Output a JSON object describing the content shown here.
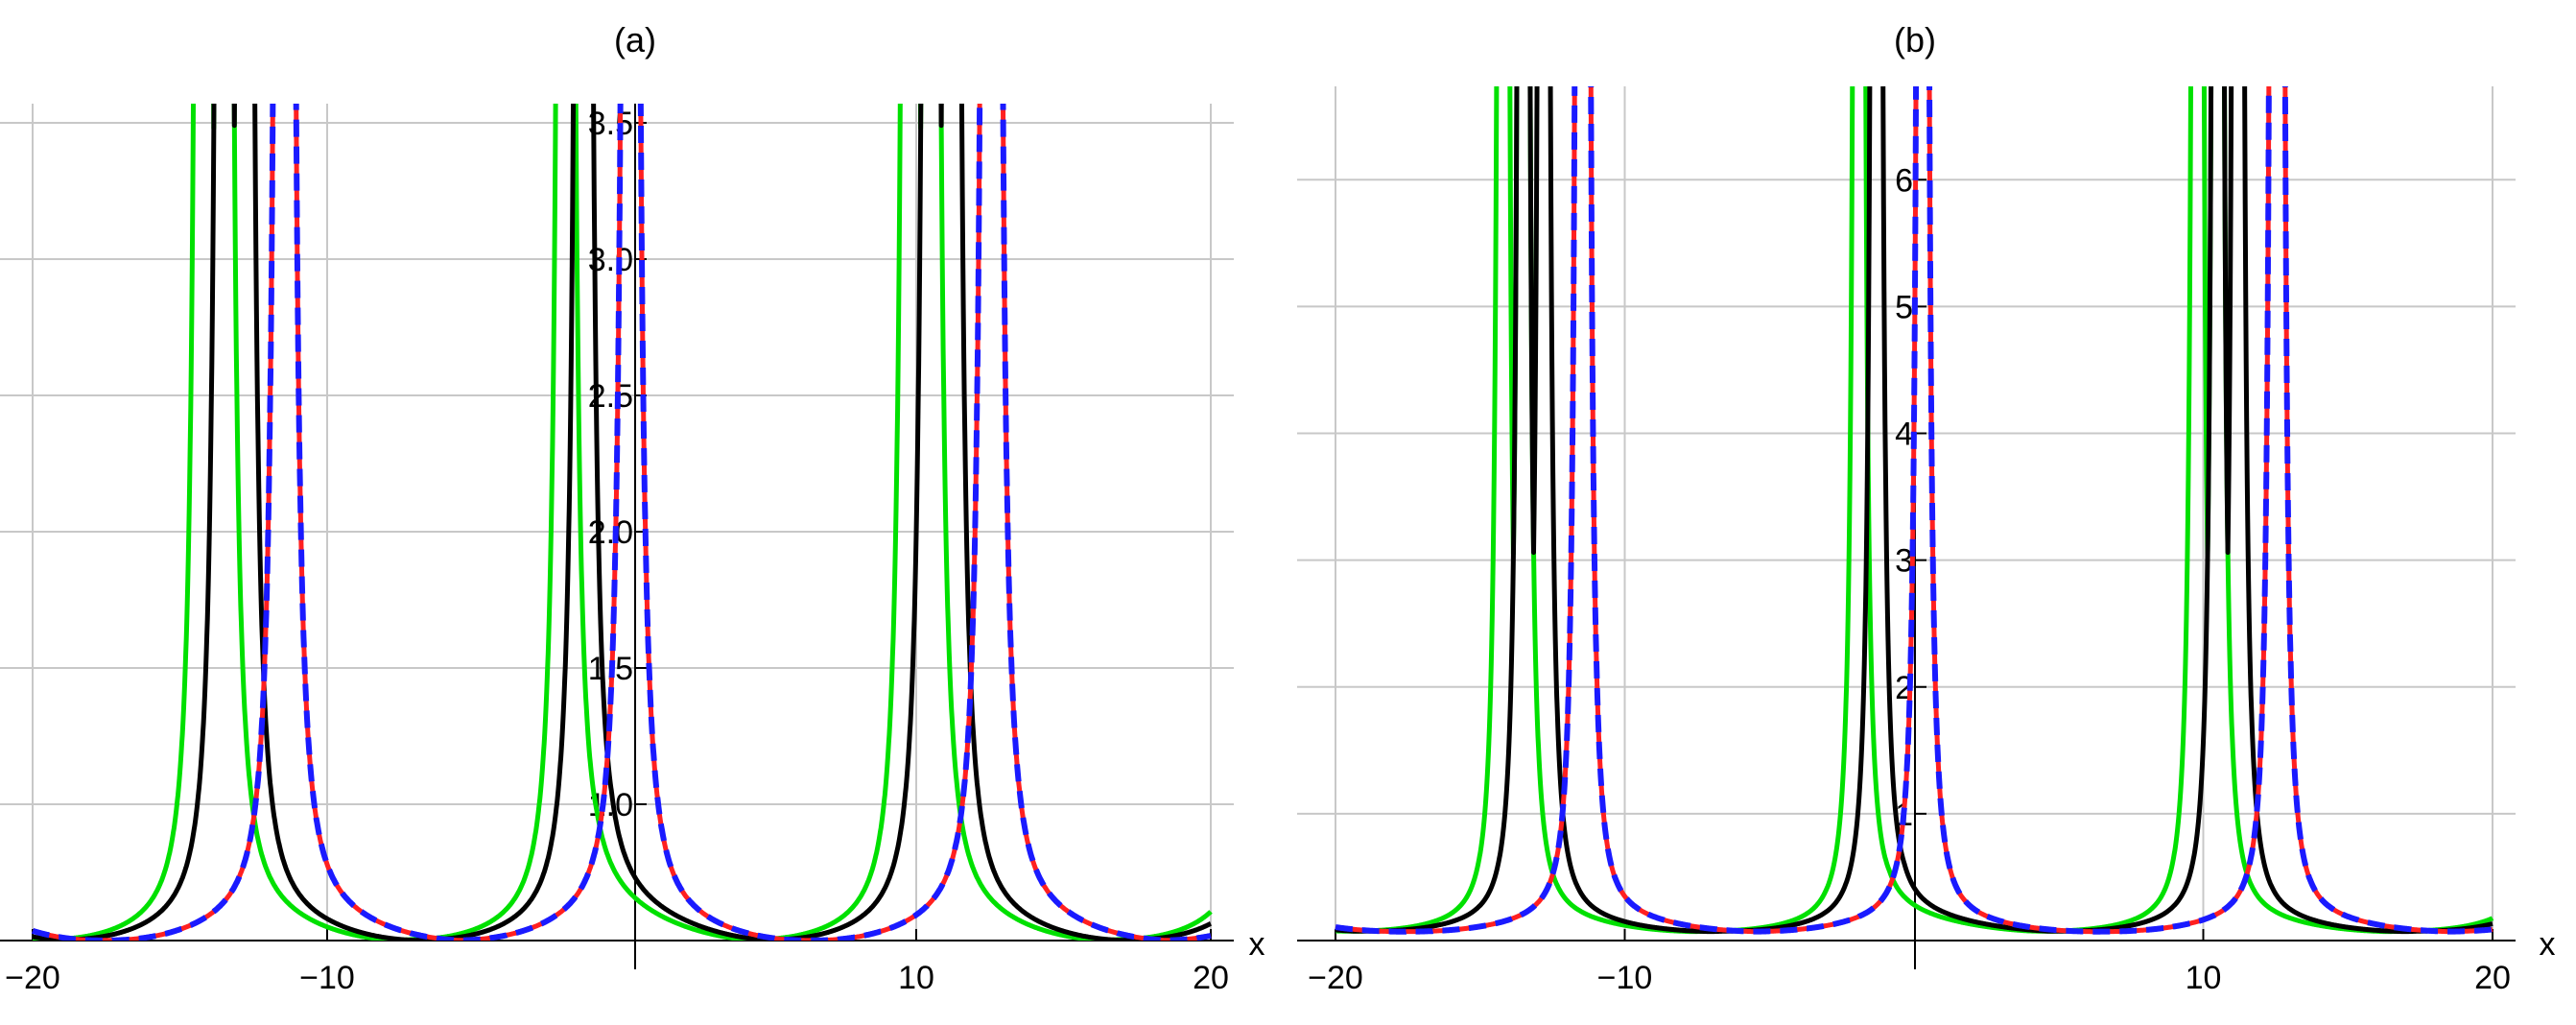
{
  "chart_data": [
    {
      "type": "line",
      "title": "(a)",
      "xlabel": "x",
      "ylabel": "",
      "xlim": [
        -20,
        20
      ],
      "ylim": [
        0.5,
        3.5
      ],
      "xticks": [
        "-20",
        "-10",
        "10",
        "20"
      ],
      "yticks": [
        "1.0",
        "1.5",
        "2.0",
        "2.5",
        "3.0",
        "3.5"
      ],
      "grid": true,
      "series": [
        {
          "color": "#00e000",
          "style": "solid",
          "period": 24,
          "poles": [
            -14.2,
            -1.9,
            10.5
          ],
          "minima_x": [
            -7.5,
            5.0,
            17.3
          ],
          "minimum_y": 0.5
        },
        {
          "color": "#000000",
          "style": "solid",
          "period": 24,
          "poles": [
            -13.5,
            -1.3,
            11.2
          ],
          "minima_x": [
            -7.0,
            5.5,
            17.8
          ],
          "minimum_y": 0.5
        },
        {
          "color": "#ff2020",
          "style": "solid",
          "period": 24,
          "poles": [
            -11.5,
            0.3,
            12.6
          ],
          "minima_x": [
            -18.0,
            -5.3,
            6.9
          ],
          "minimum_y": 0.5
        },
        {
          "color": "#1a1aff",
          "style": "dashed",
          "period": 24,
          "poles": [
            -11.5,
            0.3,
            12.6
          ],
          "minima_x": [
            -18.0,
            -5.3,
            6.9
          ],
          "minimum_y": 0.5
        }
      ]
    },
    {
      "type": "line",
      "title": "(b)",
      "xlabel": "x",
      "ylabel": "",
      "xlim": [
        -20,
        20
      ],
      "ylim": [
        0,
        6.6
      ],
      "xticks": [
        "-20",
        "-10",
        "10",
        "20"
      ],
      "yticks": [
        "1",
        "2",
        "3",
        "4",
        "5",
        "6"
      ],
      "grid": true,
      "series": [
        {
          "color": "#00e000",
          "style": "solid",
          "period": 24,
          "poles": [
            -14.2,
            -1.9,
            10.5
          ],
          "minima_x": [
            -7.5,
            5.0,
            17.3
          ],
          "minimum_y": 0.07
        },
        {
          "color": "#000000",
          "style": "solid",
          "period": 24,
          "poles": [
            -13.5,
            -1.3,
            11.2
          ],
          "minima_x": [
            -7.0,
            5.5,
            17.8
          ],
          "minimum_y": 0.07
        },
        {
          "color": "#ff2020",
          "style": "solid",
          "period": 24,
          "poles": [
            -11.5,
            0.3,
            12.6
          ],
          "minima_x": [
            -18.0,
            -5.3,
            6.9
          ],
          "minimum_y": 0.07
        },
        {
          "color": "#1a1aff",
          "style": "dashed",
          "period": 24,
          "poles": [
            -11.5,
            0.3,
            12.6
          ],
          "minima_x": [
            -18.0,
            -5.3,
            6.9
          ],
          "minimum_y": 0.07
        }
      ]
    }
  ]
}
